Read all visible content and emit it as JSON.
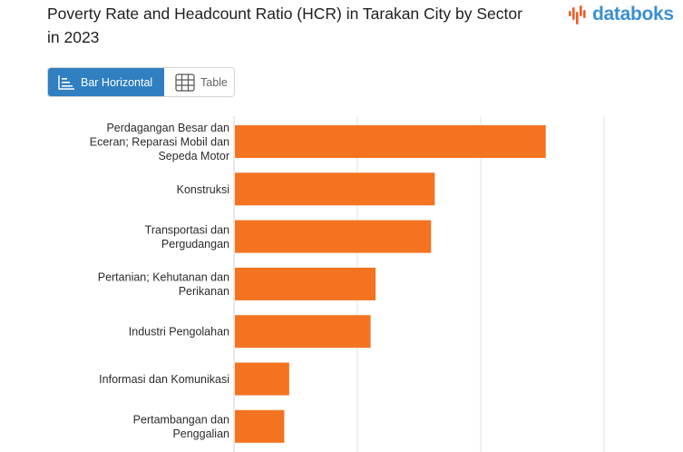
{
  "header": {
    "title": "Poverty Rate and Headcount Ratio (HCR) in Tarakan City by Sector in 2023",
    "logo_text": "databoks",
    "brand_color": "#3a8fd0",
    "logo_accent_color": "#f15a29"
  },
  "tabs": [
    {
      "label": "Bar Horizontal",
      "icon": "bar-chart-icon",
      "active": true
    },
    {
      "label": "Table",
      "icon": "table-icon",
      "active": false
    }
  ],
  "chart_data": {
    "type": "bar",
    "orientation": "horizontal",
    "bar_color": "#f37321",
    "grid": true,
    "xlim": [
      0,
      15
    ],
    "categories": [
      [
        "Perdagangan Besar dan",
        "Eceran; Reparasi Mobil dan",
        "Sepeda Motor"
      ],
      [
        "Konstruksi"
      ],
      [
        "Transportasi dan",
        "Pergudangan"
      ],
      [
        "Pertanian; Kehutanan dan",
        "Perikanan"
      ],
      [
        "Industri Pengolahan"
      ],
      [
        "Informasi dan Komunikasi"
      ],
      [
        "Pertambangan dan",
        "Penggalian"
      ]
    ],
    "values": [
      12.6,
      8.1,
      7.95,
      5.7,
      5.5,
      2.2,
      2.0
    ]
  }
}
